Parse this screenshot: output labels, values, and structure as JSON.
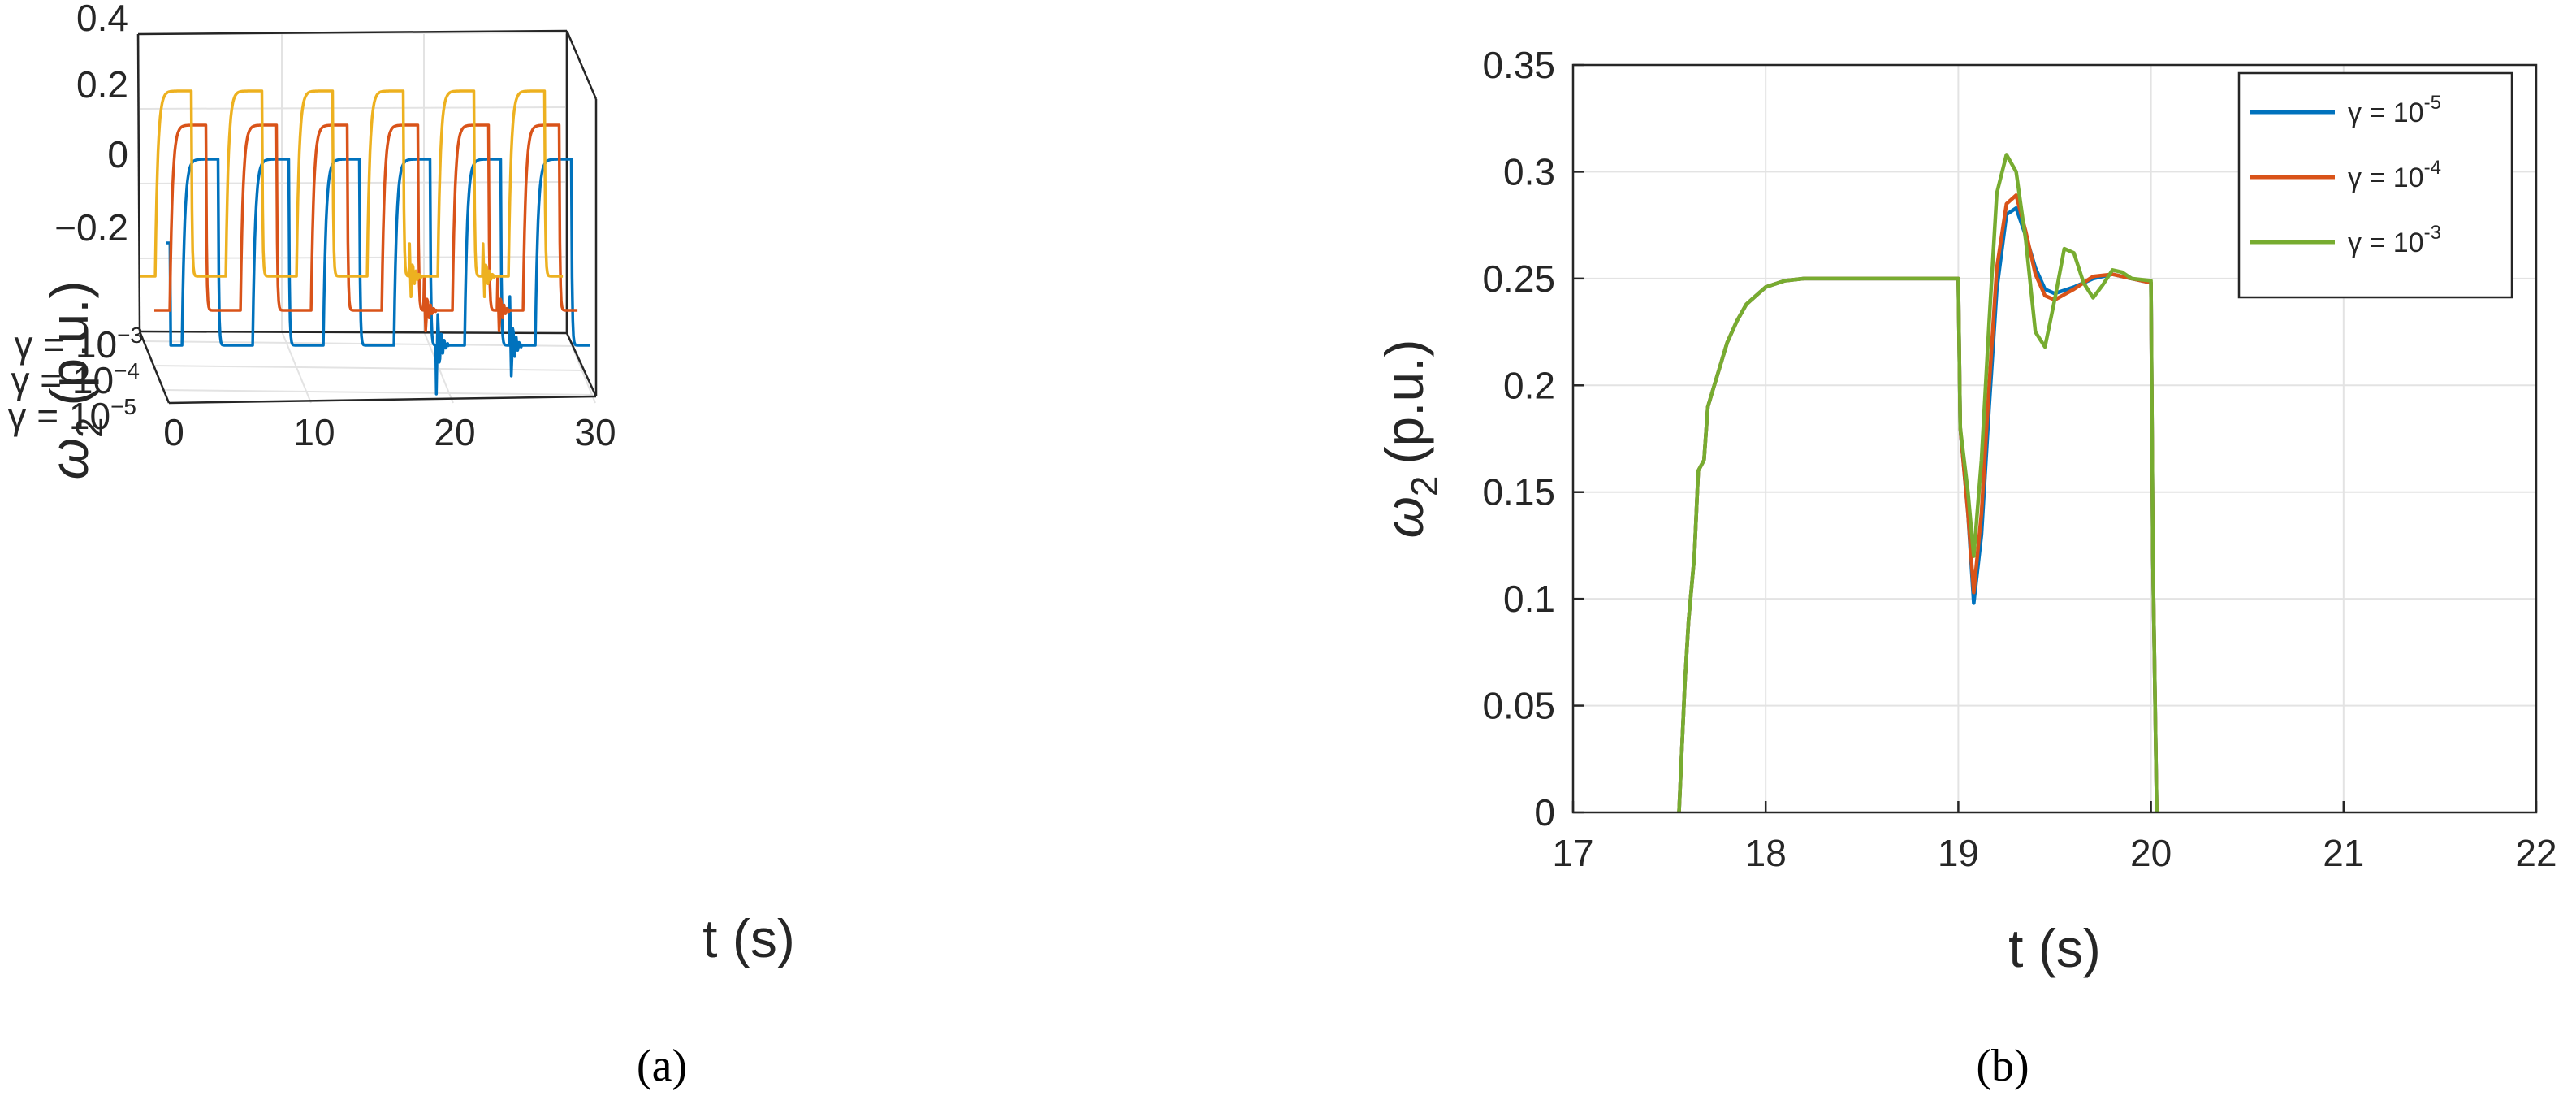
{
  "chart_data": [
    {
      "panel": "(a)",
      "type": "line",
      "view": "3d-waterfall",
      "title": "",
      "xlabel": "t (s)",
      "ylabel": "ω2 (p.u.)",
      "ylabel_main": "ω",
      "ylabel_sub": "2",
      "ylabel_unit": "(p.u.)",
      "xlim": [
        0,
        30
      ],
      "zlim": [
        -0.4,
        0.4
      ],
      "x_ticks": [
        "0",
        "10",
        "20",
        "30"
      ],
      "z_ticks": [
        "0.4",
        "0.2",
        "0",
        "−0.2"
      ],
      "depth_ticks": [
        {
          "base": "γ = 10",
          "exp": "−3"
        },
        {
          "base": "γ = 10",
          "exp": "−4"
        },
        {
          "base": "γ = 10",
          "exp": "−5"
        }
      ],
      "grid": true,
      "series": [
        {
          "name": "γ = 10^-5",
          "color": "#0072BD",
          "low": -0.25,
          "high": 0.25,
          "period": 5,
          "rise_start": 1.1,
          "fall_start": 3.05,
          "disturbances": [
            {
              "t": 19.1,
              "kind": "dip"
            },
            {
              "t": 24.3,
              "kind": "spike"
            }
          ]
        },
        {
          "name": "γ = 10^-4",
          "color": "#D95319",
          "low": -0.25,
          "high": 0.25,
          "period": 5,
          "rise_start": 1.1,
          "fall_start": 3.05,
          "disturbances": [
            {
              "t": 19.1,
              "kind": "osc"
            },
            {
              "t": 24.3,
              "kind": "osc"
            }
          ]
        },
        {
          "name": "γ = 10^-3",
          "color": "#EDB120",
          "low": -0.25,
          "high": 0.25,
          "period": 5,
          "rise_start": 1.1,
          "fall_start": 3.05,
          "disturbances": [
            {
              "t": 19.1,
              "kind": "osc"
            },
            {
              "t": 24.3,
              "kind": "osc"
            }
          ]
        }
      ]
    },
    {
      "panel": "(b)",
      "type": "line",
      "title": "",
      "xlabel": "t (s)",
      "ylabel": "ω2 (p.u.)",
      "ylabel_main": "ω",
      "ylabel_sub": "2",
      "ylabel_unit": "(p.u.)",
      "xlim": [
        17,
        22
      ],
      "ylim": [
        0,
        0.35
      ],
      "x_ticks": [
        "17",
        "18",
        "19",
        "20",
        "21",
        "22"
      ],
      "y_ticks": [
        "0",
        "0.05",
        "0.1",
        "0.15",
        "0.2",
        "0.25",
        "0.3",
        "0.35"
      ],
      "grid": true,
      "legend": "top-right",
      "series": [
        {
          "name": "γ = 10-5",
          "label_base": "γ = 10",
          "label_exp": "-5",
          "color": "#0072BD",
          "x": [
            17.55,
            17.58,
            17.6,
            17.63,
            17.65,
            17.68,
            17.7,
            17.75,
            17.8,
            17.85,
            17.9,
            18.0,
            18.1,
            18.2,
            18.5,
            19.0,
            19.01,
            19.05,
            19.08,
            19.12,
            19.16,
            19.2,
            19.25,
            19.3,
            19.35,
            19.4,
            19.45,
            19.5,
            19.6,
            19.7,
            19.8,
            19.9,
            20.0,
            20.01,
            20.03
          ],
          "y": [
            0,
            0.06,
            0.09,
            0.12,
            0.16,
            0.165,
            0.19,
            0.205,
            0.22,
            0.23,
            0.238,
            0.246,
            0.249,
            0.25,
            0.25,
            0.25,
            0.18,
            0.14,
            0.098,
            0.13,
            0.19,
            0.245,
            0.28,
            0.283,
            0.27,
            0.255,
            0.245,
            0.243,
            0.246,
            0.25,
            0.252,
            0.25,
            0.248,
            0.12,
            0
          ]
        },
        {
          "name": "γ = 10-4",
          "label_base": "γ = 10",
          "label_exp": "-4",
          "color": "#D95319",
          "x": [
            17.55,
            17.58,
            17.6,
            17.63,
            17.65,
            17.68,
            17.7,
            17.75,
            17.8,
            17.85,
            17.9,
            18.0,
            18.1,
            18.2,
            18.5,
            19.0,
            19.01,
            19.05,
            19.08,
            19.12,
            19.16,
            19.2,
            19.25,
            19.3,
            19.35,
            19.4,
            19.45,
            19.5,
            19.6,
            19.7,
            19.8,
            19.9,
            20.0,
            20.01,
            20.03
          ],
          "y": [
            0,
            0.06,
            0.09,
            0.12,
            0.16,
            0.165,
            0.19,
            0.205,
            0.22,
            0.23,
            0.238,
            0.246,
            0.249,
            0.25,
            0.25,
            0.25,
            0.18,
            0.14,
            0.103,
            0.14,
            0.2,
            0.255,
            0.285,
            0.289,
            0.272,
            0.252,
            0.242,
            0.24,
            0.245,
            0.251,
            0.252,
            0.25,
            0.248,
            0.12,
            0
          ]
        },
        {
          "name": "γ = 10-3",
          "label_base": "γ = 10",
          "label_exp": "-3",
          "color": "#77AC30",
          "x": [
            17.55,
            17.58,
            17.6,
            17.63,
            17.65,
            17.68,
            17.7,
            17.75,
            17.8,
            17.85,
            17.9,
            18.0,
            18.1,
            18.2,
            18.5,
            19.0,
            19.01,
            19.05,
            19.08,
            19.12,
            19.16,
            19.2,
            19.25,
            19.3,
            19.35,
            19.4,
            19.45,
            19.5,
            19.55,
            19.6,
            19.65,
            19.7,
            19.75,
            19.8,
            19.85,
            19.9,
            20.0,
            20.01,
            20.03
          ],
          "y": [
            0,
            0.06,
            0.09,
            0.12,
            0.16,
            0.165,
            0.19,
            0.205,
            0.22,
            0.23,
            0.238,
            0.246,
            0.249,
            0.25,
            0.25,
            0.25,
            0.18,
            0.15,
            0.12,
            0.165,
            0.23,
            0.29,
            0.308,
            0.3,
            0.268,
            0.225,
            0.218,
            0.24,
            0.264,
            0.262,
            0.248,
            0.241,
            0.247,
            0.254,
            0.253,
            0.25,
            0.249,
            0.12,
            0
          ]
        }
      ]
    }
  ],
  "captions": {
    "a": "(a)",
    "b": "(b)"
  }
}
